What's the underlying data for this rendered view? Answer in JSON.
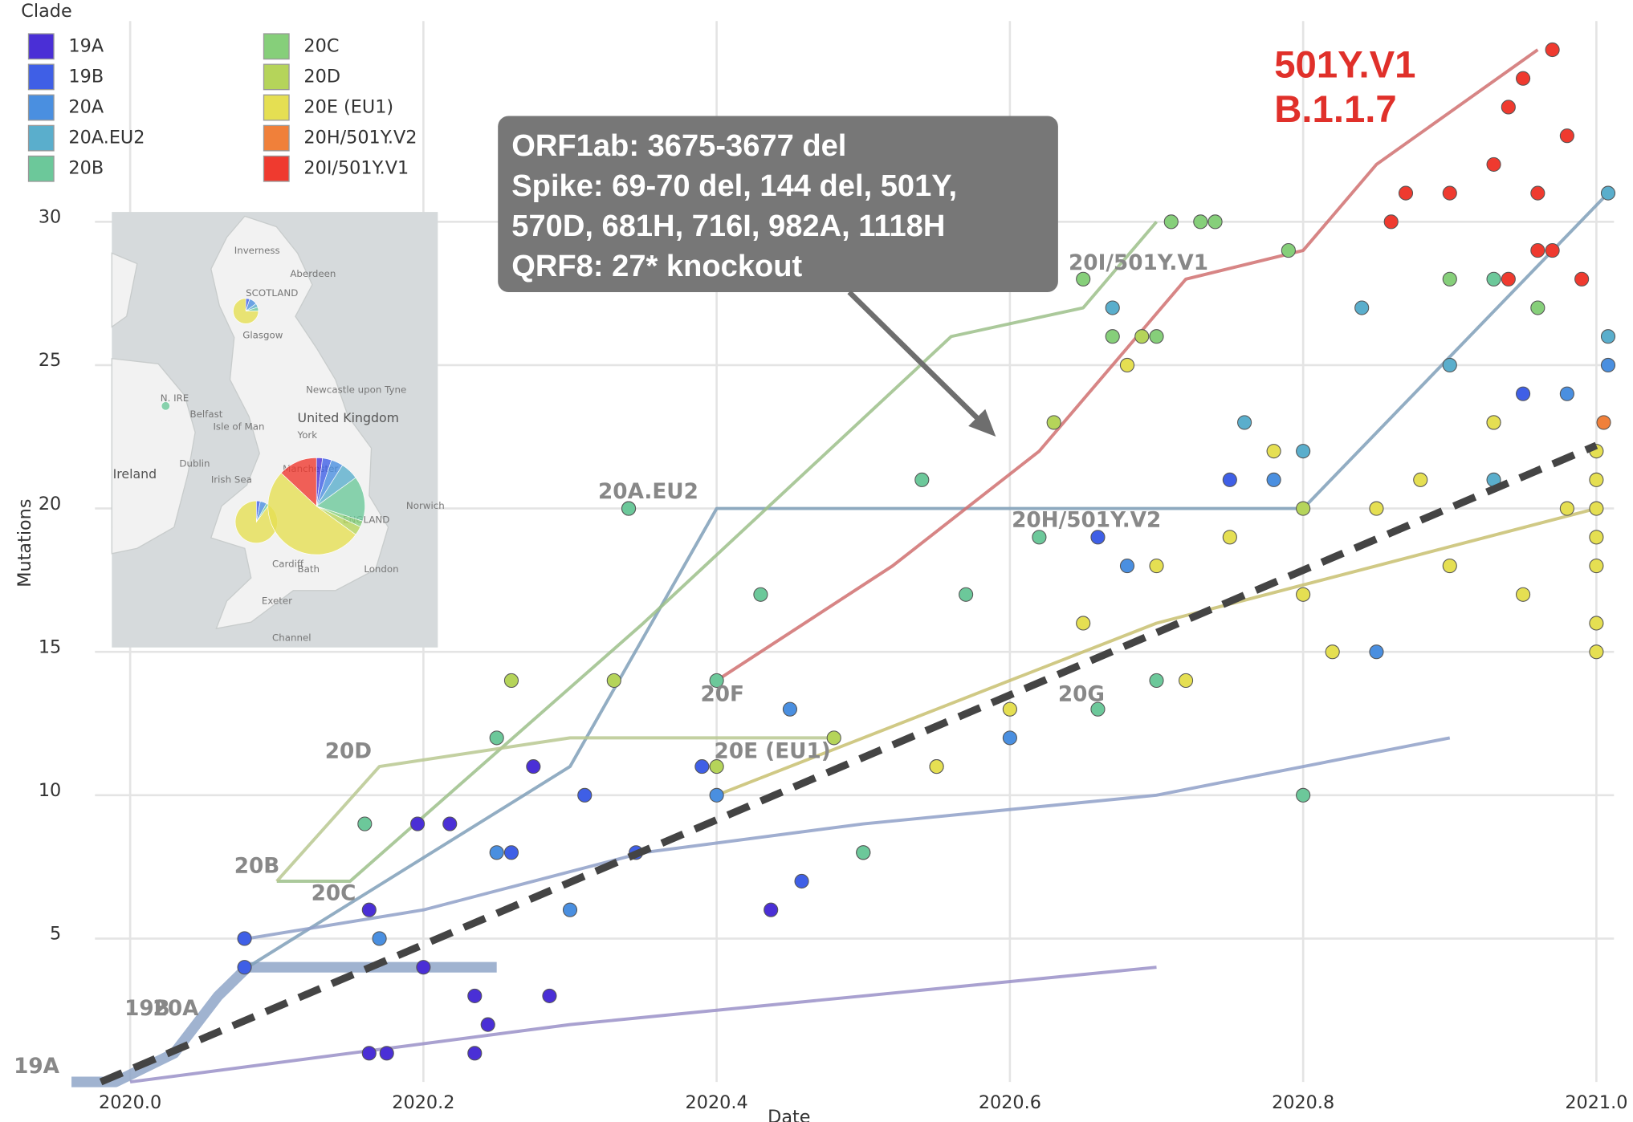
{
  "chart_data": {
    "type": "scatter",
    "x_label": "Date",
    "y_label": "Mutations",
    "legend_title": "Clade",
    "legend": "top-left",
    "grid": true,
    "xlim": [
      2019.976,
      2021.012
    ],
    "ylim": [
      0,
      37
    ],
    "xticks": [
      {
        "value": 2020.0,
        "label": "2020.0"
      },
      {
        "value": 2020.2,
        "label": "2020.2"
      },
      {
        "value": 2020.4,
        "label": "2020.4"
      },
      {
        "value": 2020.6,
        "label": "2020.6"
      },
      {
        "value": 2020.8,
        "label": "2020.8"
      },
      {
        "value": 2021.0,
        "label": "2021.0"
      }
    ],
    "yticks": [
      5,
      10,
      15,
      20,
      25,
      30
    ],
    "series": [
      {
        "name": "19A",
        "color": "#4a2fd6",
        "x": [
          2020.163,
          2020.175,
          2020.196,
          2020.218,
          2020.235,
          2020.235,
          2020.286,
          2020.437,
          2020.275,
          2020.163,
          2020.2,
          2020.244
        ],
        "values": [
          1,
          1,
          9,
          9,
          1,
          3,
          3,
          6,
          11,
          6,
          4,
          2
        ]
      },
      {
        "name": "19B",
        "color": "#3f5fe6",
        "x": [
          2020.078,
          2020.078,
          2020.26,
          2020.345,
          2020.458,
          2020.5,
          2020.39,
          2020.31,
          2020.66,
          2020.75,
          2020.95
        ],
        "values": [
          4,
          5,
          8,
          8,
          7,
          8,
          11,
          10,
          19,
          21,
          24
        ]
      },
      {
        "name": "20A",
        "color": "#4a8fe0",
        "x": [
          2020.17,
          2020.25,
          2020.3,
          2020.4,
          2020.45,
          2020.55,
          2020.6,
          2020.68,
          2020.78,
          2020.85,
          2020.93,
          2020.98,
          2021.008
        ],
        "values": [
          5,
          8,
          6,
          10,
          13,
          11,
          12,
          18,
          21,
          15,
          23,
          24,
          25
        ]
      },
      {
        "name": "20A.EU2",
        "color": "#5aaecc",
        "x": [
          2020.34,
          2020.67,
          2020.84,
          2020.93,
          2021.008,
          2021.008,
          2020.9,
          2020.76,
          2020.8
        ],
        "values": [
          20,
          27,
          27,
          21,
          31,
          26,
          25,
          23,
          22
        ]
      },
      {
        "name": "20B",
        "color": "#6cc89a",
        "x": [
          2020.16,
          2020.25,
          2020.34,
          2020.43,
          2020.54,
          2020.62,
          2020.7,
          2020.8,
          2020.93,
          2020.4,
          2020.57,
          2020.66,
          2020.5
        ],
        "values": [
          9,
          12,
          20,
          17,
          21,
          19,
          14,
          10,
          28,
          14,
          17,
          13,
          8
        ]
      },
      {
        "name": "20C",
        "color": "#86cf7a",
        "x": [
          2020.65,
          2020.71,
          2020.73,
          2020.74,
          2020.79,
          2020.7,
          2020.67,
          2020.9,
          2020.96
        ],
        "values": [
          28,
          30,
          30,
          30,
          29,
          26,
          26,
          28,
          27
        ]
      },
      {
        "name": "20D",
        "color": "#b5d45a",
        "x": [
          2020.26,
          2020.33,
          2020.48,
          2020.63,
          2020.69,
          2020.8,
          2020.4
        ],
        "values": [
          14,
          14,
          12,
          23,
          26,
          20,
          11
        ]
      },
      {
        "name": "20E (EU1)",
        "color": "#e5df52",
        "x": [
          2020.65,
          2020.7,
          2020.75,
          2020.8,
          2020.85,
          2020.9,
          2020.95,
          2021.0,
          2021.0,
          2021.0,
          2021.0,
          2021.0,
          2020.78,
          2020.88,
          2020.93,
          2020.98,
          2020.72,
          2020.82,
          2020.6,
          2020.55,
          2020.68,
          2021.0,
          2021.0
        ],
        "values": [
          16,
          18,
          19,
          17,
          20,
          18,
          17,
          22,
          20,
          19,
          18,
          16,
          22,
          21,
          23,
          20,
          14,
          15,
          13,
          11,
          25,
          15,
          21
        ]
      },
      {
        "name": "20H/501Y.V2",
        "color": "#f0803a",
        "x": [
          2021.005
        ],
        "values": [
          23
        ]
      },
      {
        "name": "20I/501Y.V1",
        "color": "#ef3a2f",
        "x": [
          2020.97,
          2020.94,
          2020.95,
          2020.98,
          2020.93,
          2020.96,
          2020.87,
          2020.86,
          2020.97,
          2020.94,
          2020.96,
          2020.99,
          2020.9
        ],
        "values": [
          36,
          34,
          35,
          33,
          32,
          31,
          31,
          30,
          29,
          28,
          29,
          28,
          31
        ]
      }
    ],
    "branches": [
      {
        "color": "#8fa6c8",
        "x": [
          2019.96,
          2019.99,
          2020.03,
          2020.06,
          2020.08,
          2020.16,
          2020.25
        ],
        "values": [
          0,
          0,
          1,
          3,
          4,
          4,
          4
        ]
      },
      {
        "color": "#7f9fb8",
        "x": [
          2020.08,
          2020.3,
          2020.4,
          2020.55,
          2020.8,
          2021.008
        ],
        "values": [
          4,
          11,
          20,
          20,
          20,
          31
        ]
      },
      {
        "color": "#d07070",
        "x": [
          2020.4,
          2020.52,
          2020.62,
          2020.72,
          2020.8,
          2020.85,
          2020.96
        ],
        "values": [
          14,
          18,
          22,
          28,
          29,
          32,
          36
        ]
      },
      {
        "color": "#9cc08a",
        "x": [
          2020.1,
          2020.15,
          2020.35,
          2020.56,
          2020.65,
          2020.7
        ],
        "values": [
          7,
          7,
          16,
          26,
          27,
          30
        ]
      },
      {
        "color": "#b8c890",
        "x": [
          2020.1,
          2020.17,
          2020.3,
          2020.48
        ],
        "values": [
          7,
          11,
          12,
          12
        ]
      },
      {
        "color": "#c8c070",
        "x": [
          2020.4,
          2020.55,
          2020.7,
          2020.85,
          2021.0
        ],
        "values": [
          10,
          13,
          16,
          18,
          20
        ]
      },
      {
        "color": "#8fa0c8",
        "x": [
          2020.08,
          2020.2,
          2020.35,
          2020.5,
          2020.7,
          2020.9
        ],
        "values": [
          5,
          6,
          8,
          9,
          10,
          12
        ]
      },
      {
        "color": "#9a90c8",
        "x": [
          2020.0,
          2020.15,
          2020.3,
          2020.5,
          2020.7
        ],
        "values": [
          0,
          1,
          2,
          3,
          4
        ]
      }
    ],
    "trend": {
      "color": "#444444",
      "x": [
        2019.98,
        2021.0
      ],
      "values": [
        0,
        22.2
      ]
    },
    "annotations": [
      "19A",
      "19B",
      "20A",
      "20B",
      "20C",
      "20D",
      "20A.EU2",
      "20F",
      "20E (EU1)",
      "20G",
      "20H/501Y.V2",
      "20I/501Y.V1"
    ],
    "callout": [
      "ORF1ab: 3675-3677 del",
      "Spike: 69-70 del, 144 del, 501Y,",
      "570D, 681H, 716I, 982A, 1118H",
      "QRF8: 27* knockout"
    ],
    "highlight": [
      "501Y.V1",
      "B.1.1.7"
    ]
  },
  "map": {
    "labels": [
      "Inverness",
      "Aberdeen",
      "SCOTLAND",
      "Glasgow",
      "Newcastle upon Tyne",
      "N. IRE",
      "Belfast",
      "Isle of Man",
      "United Kingdom",
      "York",
      "Dublin",
      "Ireland",
      "Irish Sea",
      "Manchester",
      "Norwich",
      "ENGLAND",
      "Cardiff",
      "Bath",
      "London",
      "Exeter",
      "Channel"
    ],
    "pies": [
      {
        "values": [
          0,
          5,
          10,
          5,
          5,
          0,
          0,
          75,
          0,
          0
        ]
      },
      {
        "values": [
          0,
          0,
          0,
          0,
          100,
          0,
          0,
          0,
          0,
          0
        ]
      },
      {
        "values": [
          0,
          3,
          5,
          0,
          2,
          0,
          0,
          90,
          0,
          0
        ]
      },
      {
        "values": [
          2,
          3,
          4,
          6,
          15,
          2,
          3,
          52,
          0,
          13
        ]
      }
    ]
  }
}
